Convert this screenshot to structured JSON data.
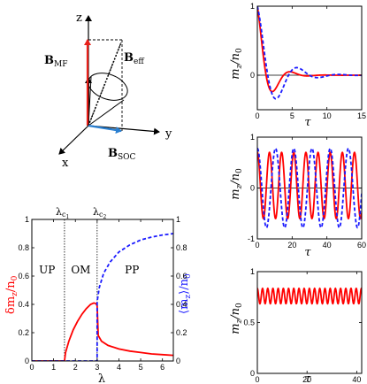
{
  "vector_diagram": {
    "axis_labels": {
      "z": "z",
      "y": "y",
      "x": "x"
    },
    "vectors": {
      "b_mf": {
        "label": "B",
        "sub": "MF",
        "color": "#e8201a"
      },
      "b_eff": {
        "label": "B",
        "sub": "eff",
        "color": "#000000"
      },
      "b_soc": {
        "label": "B",
        "sub": "SOC",
        "color": "#2a7fd0"
      }
    }
  },
  "chart_data": [
    {
      "id": "phase",
      "type": "line",
      "xlabel": "λ",
      "ylabel_left": {
        "main": "δm",
        "sub": "z",
        "rest": "/n",
        "sub2": "0"
      },
      "ylabel_right": {
        "main": "⟨m",
        "sub": "z",
        "rest": "⟩/n",
        "sub2": "0"
      },
      "xlim": [
        0,
        6.5
      ],
      "ylim": [
        0,
        1
      ],
      "x_ticks": [
        0,
        1,
        2,
        3,
        4,
        5,
        6
      ],
      "y_ticks": [
        0,
        0.2,
        0.4,
        0.6,
        0.8,
        1
      ],
      "y_tick_labels": [
        "0",
        "0.2",
        "0.4",
        "0.6",
        "0.8",
        "1"
      ],
      "y_right_tick_labels": [
        "0",
        "0.2",
        "0.4",
        "0.6",
        "0.8",
        "1"
      ],
      "critical_lines": [
        {
          "x": 1.5,
          "label": "λ",
          "sub": "c",
          "subsub": "1"
        },
        {
          "x": 3.0,
          "label": "λ",
          "sub": "c",
          "subsub": "2"
        }
      ],
      "regions": [
        {
          "label": "UP",
          "x": 0.7
        },
        {
          "label": "OM",
          "x": 2.25
        },
        {
          "label": "PP",
          "x": 4.6
        }
      ],
      "series": [
        {
          "color": "#ff0000",
          "dash": "solid",
          "x": [
            0,
            1.5,
            1.55,
            1.7,
            1.9,
            2.1,
            2.3,
            2.5,
            2.7,
            2.85,
            2.95,
            3.0,
            3.05,
            3.2,
            3.5,
            4.0,
            4.5,
            5.0,
            5.5,
            6.0,
            6.5
          ],
          "y": [
            0,
            0,
            0.06,
            0.14,
            0.22,
            0.28,
            0.33,
            0.37,
            0.4,
            0.41,
            0.405,
            0.39,
            0.18,
            0.14,
            0.11,
            0.085,
            0.07,
            0.06,
            0.05,
            0.045,
            0.04
          ]
        },
        {
          "color": "#1a1aff",
          "dash": "dashed",
          "x": [
            0,
            3.0,
            3.0,
            3.1,
            3.3,
            3.6,
            4.0,
            4.5,
            5.0,
            5.5,
            6.0,
            6.5
          ],
          "y": [
            0,
            0,
            0.42,
            0.52,
            0.62,
            0.7,
            0.77,
            0.82,
            0.855,
            0.875,
            0.89,
            0.9
          ]
        }
      ]
    },
    {
      "id": "dyn1",
      "type": "line",
      "xlabel": "τ",
      "ylabel": {
        "main": "m",
        "sub": "z",
        "rest": "/n",
        "sub2": "0"
      },
      "xlim": [
        0,
        15
      ],
      "ylim": [
        -0.5,
        1
      ],
      "x_ticks": [
        0,
        5,
        10,
        15
      ],
      "y_ticks": [
        0,
        1
      ],
      "y_tick_labels": [
        "0",
        "1"
      ],
      "zero_line": true,
      "series": [
        {
          "color": "#ff0000",
          "dash": "solid",
          "model": {
            "kind": "damped",
            "amp": 1.0,
            "omega": 1.25,
            "decay": 0.62,
            "offset": 0
          }
        },
        {
          "color": "#1a1aff",
          "dash": "dashed",
          "model": {
            "kind": "damped",
            "amp": 1.0,
            "omega": 1.05,
            "decay": 0.38,
            "offset": 0
          }
        }
      ]
    },
    {
      "id": "dyn2",
      "type": "line",
      "xlabel": "τ",
      "ylabel": {
        "main": "m",
        "sub": "z",
        "rest": "/n",
        "sub2": "0"
      },
      "xlim": [
        0,
        60
      ],
      "ylim": [
        -1,
        1
      ],
      "x_ticks": [
        0,
        20,
        40,
        60
      ],
      "y_ticks": [
        -1,
        0,
        1
      ],
      "y_tick_labels": [
        "-1",
        "0",
        "1"
      ],
      "zero_line": true,
      "series": [
        {
          "color": "#ff0000",
          "dash": "solid",
          "model": {
            "kind": "osc",
            "amp": 0.65,
            "omega": 0.9,
            "decay": 0,
            "offset": 0.05
          }
        },
        {
          "color": "#1a1aff",
          "dash": "dashed",
          "model": {
            "kind": "osc",
            "amp": 0.78,
            "omega": 0.6,
            "decay": 0,
            "offset": 0
          }
        }
      ]
    },
    {
      "id": "dyn3",
      "type": "line",
      "xlabel": "τ",
      "ylabel": {
        "main": "m",
        "sub": "z",
        "rest": "/n",
        "sub2": "0"
      },
      "xlim": [
        0,
        42
      ],
      "ylim": [
        0,
        1
      ],
      "x_ticks": [
        0,
        20,
        40
      ],
      "y_ticks": [
        0,
        0.5,
        1
      ],
      "y_tick_labels": [
        "0",
        "0.5",
        "1"
      ],
      "zero_line": false,
      "series": [
        {
          "color": "#ff0000",
          "dash": "solid",
          "model": {
            "kind": "osc",
            "amp": 0.075,
            "omega": 3.0,
            "decay": 0,
            "offset": 0.76
          }
        }
      ]
    }
  ]
}
